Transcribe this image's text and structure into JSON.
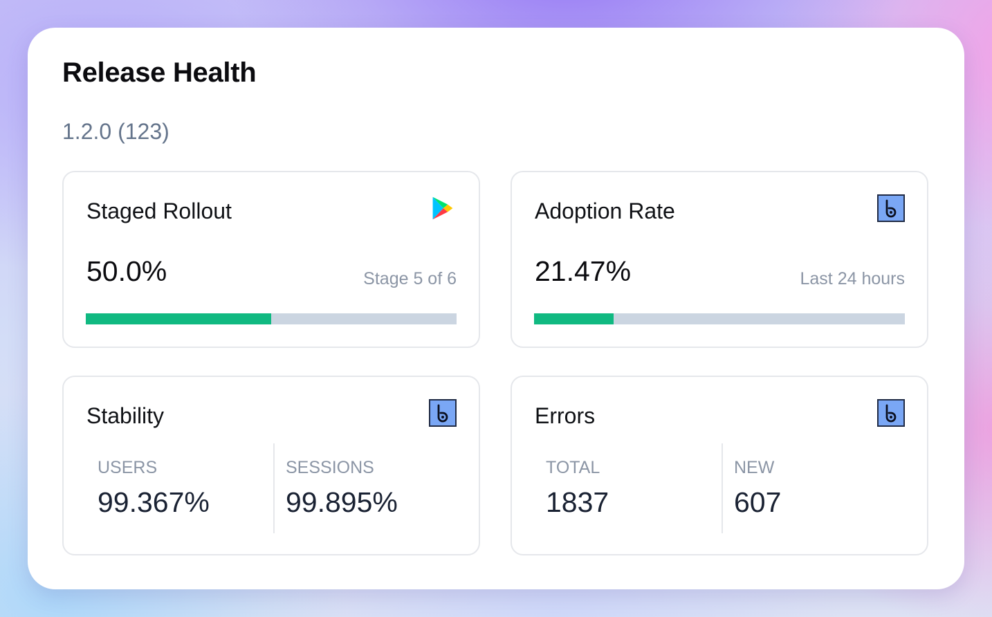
{
  "header": {
    "title": "Release Health",
    "version": "1.2.0 (123)"
  },
  "cards": {
    "rollout": {
      "title": "Staged Rollout",
      "value": "50.0%",
      "sublabel": "Stage 5 of 6",
      "progress_percent": 50,
      "icon": "google-play-icon"
    },
    "adoption": {
      "title": "Adoption Rate",
      "value": "21.47%",
      "sublabel": "Last 24 hours",
      "progress_percent": 21.47,
      "icon": "bugsnag-icon"
    },
    "stability": {
      "title": "Stability",
      "icon": "bugsnag-icon",
      "users_label": "USERS",
      "users_value": "99.367%",
      "sessions_label": "SESSIONS",
      "sessions_value": "99.895%"
    },
    "errors": {
      "title": "Errors",
      "icon": "bugsnag-icon",
      "total_label": "TOTAL",
      "total_value": "1837",
      "new_label": "NEW",
      "new_value": "607"
    }
  },
  "colors": {
    "progress_fill": "#10b981",
    "progress_track": "#cbd5e1",
    "bugsnag_icon_bg": "#7aa7f5",
    "muted_text": "#8b95a5"
  }
}
